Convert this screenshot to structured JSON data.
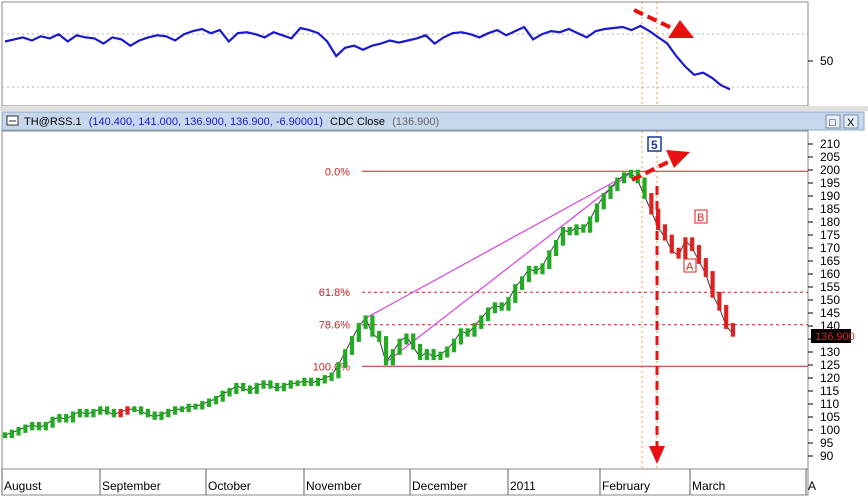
{
  "colors": {
    "rsi_line": "#1a1acc",
    "price_line": "#3a3a3a",
    "up_candle": "#22aa22",
    "down_candle": "#dd2222",
    "fib_line": "#cc2222",
    "fib_text": "#cc2222",
    "channel": "#e040e0",
    "arrow": "#e81010",
    "vertical_dotted": "#e8a040",
    "header_bg": "#c8d8ec",
    "wave_label": "#1a3a9a"
  },
  "rsi_panel": {
    "y_tick_label": "50"
  },
  "header": {
    "symbol": "TH@RSS.1",
    "ohlc": "(140.400, 141.000, 136.900, 136.900, -6.90001)",
    "study": "CDC Close",
    "study_value": "(136.900)",
    "buttons": [
      "□",
      "X"
    ]
  },
  "fib_levels": [
    {
      "label": "0.0%",
      "value": 199.5
    },
    {
      "label": "61.8%",
      "value": 153
    },
    {
      "label": "78.6%",
      "value": 140.5
    },
    {
      "label": "100.0%",
      "value": 124.5
    }
  ],
  "wave_labels": {
    "five": "5",
    "a": "A",
    "b": "B"
  },
  "last_price_tag": "136.900",
  "chart_data": [
    {
      "type": "line",
      "title": "",
      "ylim": [
        0,
        100
      ],
      "y_ticks": [
        50
      ],
      "values": [
        62,
        64,
        66,
        63,
        67,
        65,
        69,
        62,
        68,
        66,
        65,
        60,
        66,
        64,
        58,
        63,
        66,
        68,
        67,
        63,
        69,
        72,
        74,
        70,
        73,
        62,
        70,
        71,
        69,
        66,
        71,
        68,
        65,
        75,
        73,
        70,
        62,
        48,
        56,
        58,
        54,
        58,
        60,
        63,
        61,
        63,
        65,
        68,
        60,
        66,
        70,
        71,
        69,
        66,
        70,
        73,
        68,
        72,
        76,
        64,
        69,
        72,
        71,
        74,
        70,
        66,
        72,
        74,
        75,
        76,
        73,
        77,
        72,
        66,
        60,
        48,
        38,
        30,
        32,
        27,
        20,
        16
      ]
    },
    {
      "type": "line",
      "title": "",
      "ylim": [
        85,
        215
      ],
      "y_ticks": [
        90,
        95,
        100,
        105,
        110,
        115,
        120,
        125,
        130,
        135,
        140,
        145,
        150,
        155,
        160,
        165,
        170,
        175,
        180,
        185,
        190,
        195,
        200,
        205,
        210
      ],
      "x_tick_labels": [
        "August",
        "September",
        "October",
        "November",
        "December",
        "2011",
        "February",
        "March",
        "A"
      ],
      "series": [
        {
          "values": [
            98,
            99,
            100,
            101,
            102,
            101,
            102,
            104,
            105,
            104,
            106,
            107,
            106,
            107,
            108,
            107,
            106,
            107,
            108,
            108,
            107,
            106,
            105,
            106,
            107,
            108,
            108,
            109,
            109,
            110,
            111,
            112,
            114,
            115,
            117,
            116,
            115,
            117,
            118,
            117,
            116,
            117,
            118,
            118,
            119,
            118,
            119,
            120,
            121,
            125,
            130,
            135,
            140,
            143,
            137,
            135,
            126,
            130,
            134,
            136,
            132,
            128,
            130,
            128,
            129,
            131,
            134,
            138,
            137,
            140,
            143,
            146,
            148,
            147,
            150,
            155,
            158,
            162,
            161,
            163,
            168,
            172,
            177,
            176,
            178,
            177,
            181,
            186,
            190,
            193,
            196,
            198,
            199,
            196,
            190,
            184,
            178,
            174,
            169,
            167,
            173,
            170,
            165,
            160,
            152,
            147,
            140,
            137
          ]
        }
      ],
      "down_bar_ranges": [
        [
          17,
          18
        ],
        [
          95,
          107
        ]
      ]
    }
  ]
}
